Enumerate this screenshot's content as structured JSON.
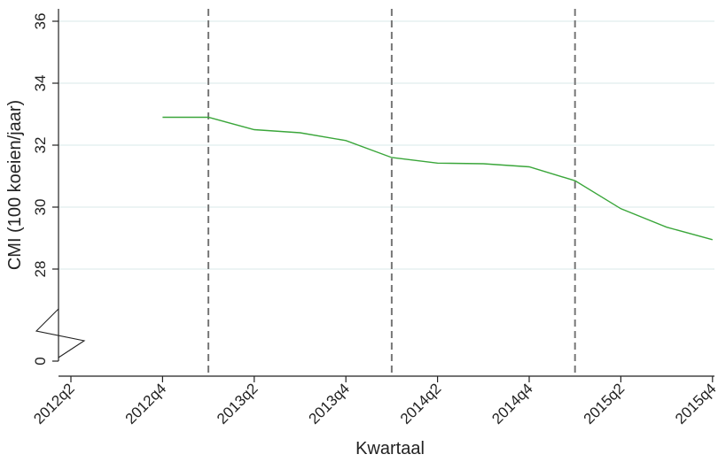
{
  "chart_data": {
    "type": "line",
    "xlabel": "Kwartaal",
    "ylabel": "CMI (100 koeien/jaar)",
    "x_ticks": [
      "2012q2",
      "2012q4",
      "2013q2",
      "2013q4",
      "2014q2",
      "2014q4",
      "2015q2",
      "2015q4"
    ],
    "y_ticks": [
      0,
      28,
      30,
      32,
      34,
      36
    ],
    "y_axis_break": {
      "lower_value": 0,
      "upper_range": [
        27,
        36
      ]
    },
    "grid": "horizontal",
    "legend": "none",
    "vlines_x": [
      "2013q1",
      "2014q1",
      "2015q1"
    ],
    "series": [
      {
        "color": "#3aa63a",
        "x": [
          "2012q4",
          "2013q1",
          "2013q2",
          "2013q3",
          "2013q4",
          "2014q1",
          "2014q2",
          "2014q3",
          "2014q4",
          "2015q1",
          "2015q2",
          "2015q3",
          "2015q4"
        ],
        "values": [
          32.9,
          32.9,
          32.5,
          32.4,
          32.15,
          31.6,
          31.42,
          31.4,
          31.3,
          30.85,
          29.95,
          29.35,
          28.95
        ]
      }
    ]
  },
  "colors": {
    "line": "#3aa63a",
    "grid": "#d9e8ea",
    "vline": "#777777",
    "axis": "#222222"
  }
}
